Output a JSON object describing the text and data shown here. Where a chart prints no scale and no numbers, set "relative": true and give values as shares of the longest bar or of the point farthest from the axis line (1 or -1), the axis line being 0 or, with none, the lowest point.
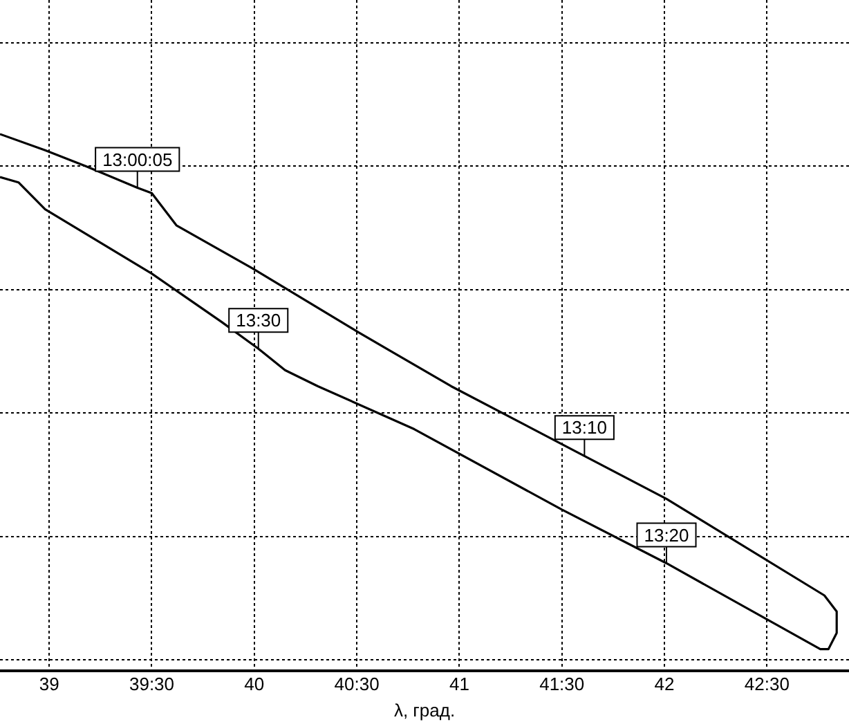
{
  "chart_data": {
    "type": "line",
    "xlabel": "λ, град.",
    "relative": true,
    "grid": true,
    "color": "#000000",
    "x": [
      38.76,
      38.98,
      39.18,
      39.43,
      39.5,
      39.62,
      39.99,
      40.51,
      40.96,
      41.61,
      42.01,
      42.78,
      42.84,
      42.84,
      42.8,
      42.76,
      42.01,
      41.5,
      40.78,
      40.31,
      40.15,
      40.02,
      39.84,
      39.5,
      38.98,
      38.85,
      38.76
    ],
    "values": [
      1.0,
      0.97,
      0.94,
      0.9,
      0.89,
      0.83,
      0.75,
      0.63,
      0.53,
      0.4,
      0.32,
      0.14,
      0.11,
      0.07,
      0.04,
      0.04,
      0.2,
      0.3,
      0.45,
      0.53,
      0.56,
      0.6,
      0.65,
      0.74,
      0.86,
      0.91,
      0.92
    ],
    "xlim": [
      38.76,
      42.9
    ],
    "xticks": [
      39,
      {
        "value": 39.5,
        "label": "39:30"
      },
      40,
      {
        "value": 40.5,
        "label": "40:30"
      },
      41,
      {
        "value": 41.5,
        "label": "41:30"
      },
      42,
      {
        "value": 42.5,
        "label": "42:30"
      }
    ],
    "annotations": [
      {
        "text": "13:00:05",
        "x": 39.43,
        "y": 0.9
      },
      {
        "text": "13:30",
        "x": 40.02,
        "y": 0.6
      },
      {
        "text": "13:10",
        "x": 41.61,
        "y": 0.4
      },
      {
        "text": "13:20",
        "x": 42.01,
        "y": 0.2
      }
    ]
  }
}
